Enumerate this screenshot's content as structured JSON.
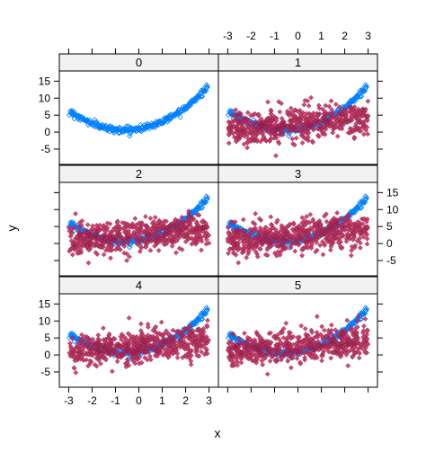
{
  "chart_data": {
    "type": "scatter",
    "layout": "lattice 2 columns x 3 rows, panels ordered bottom-left to top-right",
    "xlabel": "x",
    "ylabel": "y",
    "xlim": [
      -3.4,
      3.4
    ],
    "ylim": [
      -9.5,
      18
    ],
    "xticks": [
      -3,
      -2,
      -1,
      0,
      1,
      2,
      3
    ],
    "yticks": [
      -5,
      0,
      5,
      10,
      15
    ],
    "panels": [
      {
        "strip": "0",
        "series": [
          "baseline"
        ]
      },
      {
        "strip": "1",
        "series": [
          "baseline",
          "noise"
        ]
      },
      {
        "strip": "2",
        "series": [
          "baseline",
          "noise"
        ]
      },
      {
        "strip": "3",
        "series": [
          "baseline",
          "noise"
        ]
      },
      {
        "strip": "4",
        "series": [
          "baseline",
          "noise"
        ]
      },
      {
        "strip": "5",
        "series": [
          "baseline",
          "noise"
        ]
      }
    ],
    "series": [
      {
        "id": "baseline",
        "marker": "open-diamond",
        "color": "#0080ff",
        "relation": "y = x^2 + 1.2 x + 1 with small noise",
        "n": 300,
        "sample_points": [
          [
            -3,
            6.5
          ],
          [
            -2,
            4
          ],
          [
            -1,
            1
          ],
          [
            0,
            0.8
          ],
          [
            1,
            3
          ],
          [
            2,
            7
          ],
          [
            3,
            13
          ]
        ]
      },
      {
        "id": "noise",
        "marker": "filled-diamond",
        "color": "#c8285a",
        "relation": "uniform x, y ~ 3 + 0.6x with wide scatter (about -5 to 11)",
        "n": 600,
        "sample_points": [
          [
            -3,
            2
          ],
          [
            -2,
            2.5
          ],
          [
            -1,
            2
          ],
          [
            0,
            3
          ],
          [
            1,
            3.5
          ],
          [
            2,
            4.5
          ],
          [
            3,
            5
          ]
        ]
      }
    ],
    "grid": false,
    "legend": "none"
  }
}
